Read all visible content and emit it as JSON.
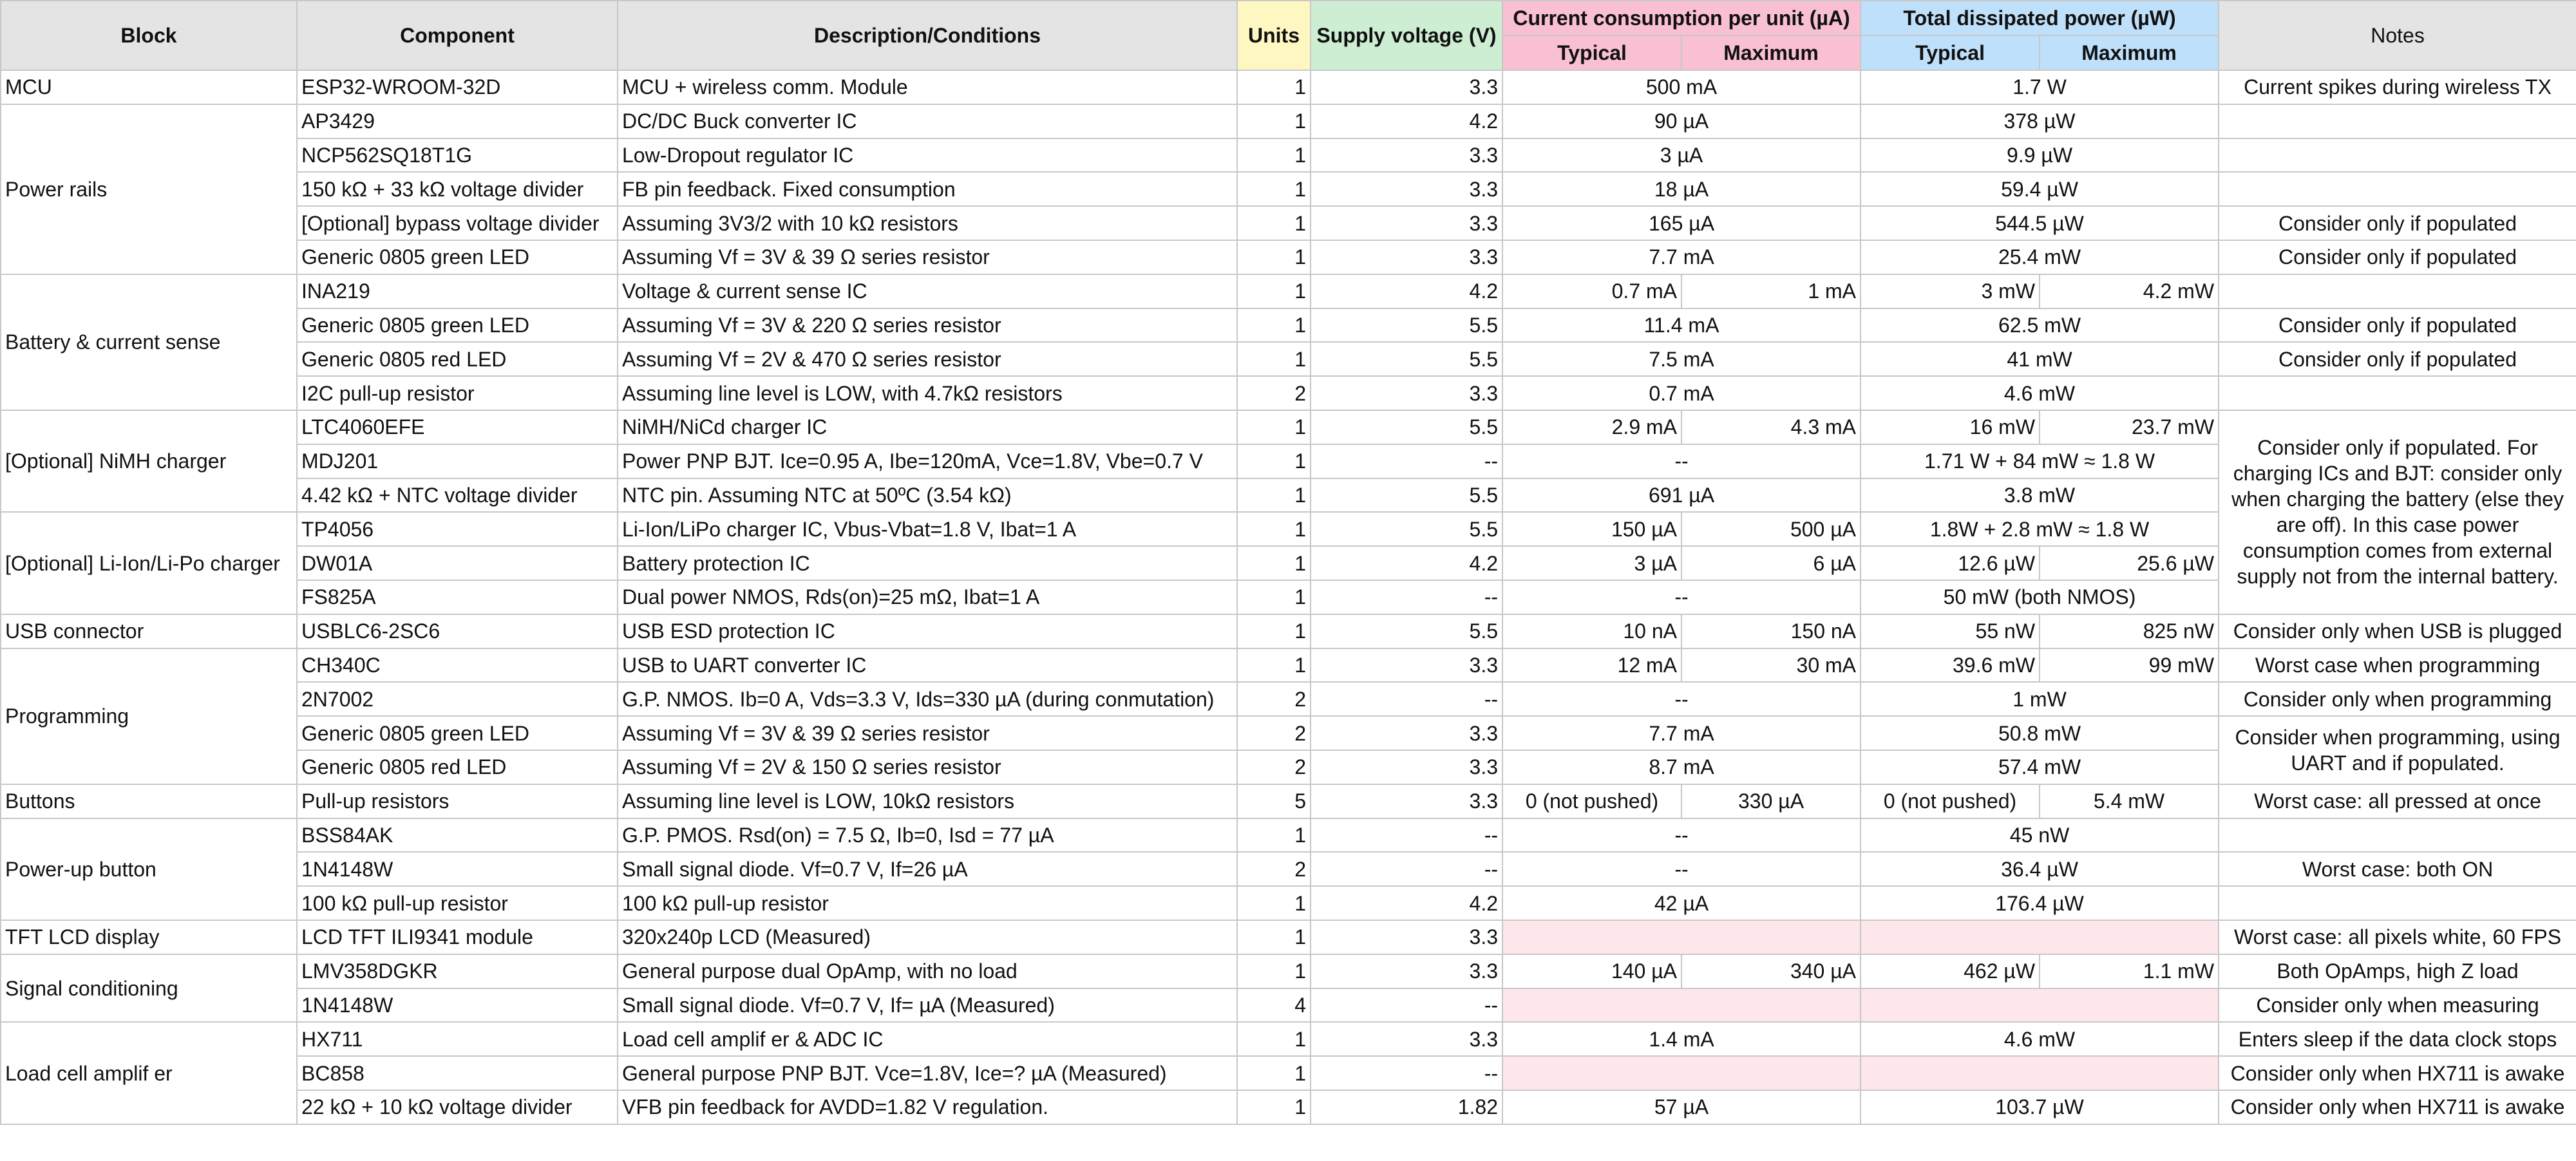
{
  "header": {
    "block": "Block",
    "component": "Component",
    "description": "Description/Conditions",
    "units": "Units",
    "supply": "Supply voltage (V)",
    "current": "Current consumption per unit (µA)",
    "power": "Total dissipated power (µW)",
    "notes": "Notes",
    "typical": "Typical",
    "maximum": "Maximum"
  },
  "blocks": {
    "mcu": "MCU",
    "power_rails": "Power rails",
    "battery": "Battery & current sense",
    "nimh": "[Optional] NiMH charger",
    "liion": "[Optional] Li-Ion/Li-Po charger",
    "usb": "USB connector",
    "programming": "Programming",
    "buttons": "Buttons",
    "powerup": "Power-up button",
    "tft": "TFT LCD display",
    "signal": "Signal conditioning",
    "loadcell": "Load cell amplif er"
  },
  "rows": [
    {
      "component": "ESP32-WROOM-32D",
      "description": "MCU + wireless comm. Module",
      "units": "1",
      "supply": "3.3",
      "current": "500 mA",
      "power": "1.7 W",
      "notes": "Current spikes during wireless TX"
    },
    {
      "component": "AP3429",
      "description": "DC/DC Buck converter IC",
      "units": "1",
      "supply": "4.2",
      "current": "90 µA",
      "power": "378 µW",
      "notes": ""
    },
    {
      "component": "NCP562SQ18T1G",
      "description": "Low-Dropout regulator IC",
      "units": "1",
      "supply": "3.3",
      "current": "3 µA",
      "power": "9.9 µW",
      "notes": ""
    },
    {
      "component": "150 kΩ + 33 kΩ voltage divider",
      "description": "FB pin feedback. Fixed consumption",
      "units": "1",
      "supply": "3.3",
      "current": "18 µA",
      "power": "59.4 µW",
      "notes": ""
    },
    {
      "component": "[Optional] bypass voltage divider",
      "description": "Assuming 3V3/2 with 10 kΩ resistors",
      "units": "1",
      "supply": "3.3",
      "current": "165 µA",
      "power": "544.5 µW",
      "notes": "Consider only if populated"
    },
    {
      "component": "Generic 0805 green LED",
      "description": "Assuming Vf = 3V & 39 Ω series resistor",
      "units": "1",
      "supply": "3.3",
      "current": "7.7 mA",
      "power": "25.4 mW",
      "notes": "Consider only if populated"
    },
    {
      "component": "INA219",
      "description": "Voltage & current sense IC",
      "units": "1",
      "supply": "4.2",
      "current_typ": "0.7 mA",
      "current_max": "1 mA",
      "power_typ": "3 mW",
      "power_max": "4.2 mW",
      "notes": ""
    },
    {
      "component": "Generic 0805 green LED",
      "description": "Assuming Vf = 3V & 220 Ω series resistor",
      "units": "1",
      "supply": "5.5",
      "current": "11.4 mA",
      "power": "62.5 mW",
      "notes": "Consider only if populated"
    },
    {
      "component": "Generic 0805 red LED",
      "description": "Assuming Vf = 2V & 470 Ω series resistor",
      "units": "1",
      "supply": "5.5",
      "current": "7.5 mA",
      "power": "41 mW",
      "notes": "Consider only if populated"
    },
    {
      "component": "I2C pull-up resistor",
      "description": "Assuming line level is LOW, with 4.7kΩ resistors",
      "units": "2",
      "supply": "3.3",
      "current": "0.7 mA",
      "power": "4.6 mW",
      "notes": ""
    },
    {
      "component": "LTC4060EFE",
      "description": "NiMH/NiCd charger IC",
      "units": "1",
      "supply": "5.5",
      "current_typ": "2.9 mA",
      "current_max": "4.3 mA",
      "power_typ": "16 mW",
      "power_max": "23.7 mW"
    },
    {
      "component": "MDJ201",
      "description": "Power PNP BJT. Ice=0.95 A, Ibe=120mA, Vce=1.8V, Vbe=0.7 V",
      "units": "1",
      "supply": "--",
      "current": "--",
      "power": "1.71 W + 84 mW ≈ 1.8 W"
    },
    {
      "component": "4.42 kΩ + NTC voltage divider",
      "description": "NTC pin. Assuming NTC at 50ºC (3.54 kΩ)",
      "units": "1",
      "supply": "5.5",
      "current": "691 µA",
      "power": "3.8 mW"
    },
    {
      "component": "TP4056",
      "description": "Li-Ion/LiPo charger IC, Vbus-Vbat=1.8 V, Ibat=1 A",
      "units": "1",
      "supply": "5.5",
      "current_typ": "150 µA",
      "current_max": "500 µA",
      "power": "1.8W + 2.8 mW ≈ 1.8 W"
    },
    {
      "component": "DW01A",
      "description": "Battery protection IC",
      "units": "1",
      "supply": "4.2",
      "current_typ": "3 µA",
      "current_max": "6 µA",
      "power_typ": "12.6 µW",
      "power_max": "25.6 µW"
    },
    {
      "component": "FS825A",
      "description": "Dual power NMOS, Rds(on)=25 mΩ, Ibat=1 A",
      "units": "1",
      "supply": "--",
      "current": "--",
      "power": "50 mW (both NMOS)"
    },
    {
      "component": "USBLC6-2SC6",
      "description": "USB ESD protection IC",
      "units": "1",
      "supply": "5.5",
      "current_typ": "10 nA",
      "current_max": "150 nA",
      "power_typ": "55 nW",
      "power_max": "825 nW",
      "notes": "Consider only when USB is plugged"
    },
    {
      "component": "CH340C",
      "description": "USB to UART converter IC",
      "units": "1",
      "supply": "3.3",
      "current_typ": "12 mA",
      "current_max": "30 mA",
      "power_typ": "39.6 mW",
      "power_max": "99 mW",
      "notes": "Worst case when programming"
    },
    {
      "component": "2N7002",
      "description": "G.P. NMOS. Ib=0 A, Vds=3.3 V, Ids=330 µA (during conmutation)",
      "units": "2",
      "supply": "--",
      "current": "--",
      "power": "1 mW",
      "notes": "Consider only when programming"
    },
    {
      "component": "Generic 0805 green LED",
      "description": "Assuming Vf = 3V & 39 Ω series resistor",
      "units": "2",
      "supply": "3.3",
      "current": "7.7 mA",
      "power": "50.8 mW"
    },
    {
      "component": "Generic 0805 red LED",
      "description": "Assuming Vf = 2V & 150 Ω series resistor",
      "units": "2",
      "supply": "3.3",
      "current": "8.7 mA",
      "power": "57.4 mW"
    },
    {
      "component": "Pull-up resistors",
      "description": "Assuming line level is LOW, 10kΩ resistors",
      "units": "5",
      "supply": "3.3",
      "current_typ": "0 (not pushed)",
      "current_max": "330 µA",
      "power_typ": "0 (not pushed)",
      "power_max": "5.4 mW",
      "notes": "Worst case: all pressed at once"
    },
    {
      "component": "BSS84AK",
      "description": "G.P. PMOS. Rsd(on) = 7.5 Ω, Ib=0, Isd = 77 µA",
      "units": "1",
      "supply": "--",
      "current": "--",
      "power": "45 nW",
      "notes": ""
    },
    {
      "component": "1N4148W",
      "description": "Small signal diode. Vf=0.7 V, If=26 µA",
      "units": "2",
      "supply": "--",
      "current": "--",
      "power": "36.4 µW",
      "notes": "Worst case: both ON"
    },
    {
      "component": "100 kΩ pull-up resistor",
      "description": "100 kΩ pull-up resistor",
      "units": "1",
      "supply": "4.2",
      "current": "42 µA",
      "power": "176.4 µW",
      "notes": ""
    },
    {
      "component": "LCD TFT ILI9341 module",
      "description": "320x240p LCD (Measured)",
      "units": "1",
      "supply": "3.3",
      "notes": "Worst case: all pixels white, 60 FPS"
    },
    {
      "component": "LMV358DGKR",
      "description": "General purpose dual OpAmp, with no load",
      "units": "1",
      "supply": "3.3",
      "current_typ": "140 µA",
      "current_max": "340 µA",
      "power_typ": "462 µW",
      "power_max": "1.1 mW",
      "notes": "Both OpAmps, high Z load"
    },
    {
      "component": "1N4148W",
      "description": "Small signal diode. Vf=0.7 V, If= µA (Measured)",
      "units": "4",
      "supply": "--",
      "notes": "Consider only when measuring"
    },
    {
      "component": "HX711",
      "description": "Load cell amplif er & ADC IC",
      "units": "1",
      "supply": "3.3",
      "current": "1.4 mA",
      "power": "4.6 mW",
      "notes": "Enters sleep if the data clock stops"
    },
    {
      "component": "BC858",
      "description": "General purpose PNP BJT. Vce=1.8V, Ice=? µA (Measured)",
      "units": "1",
      "supply": "--",
      "notes": "Consider only when HX711 is awake"
    },
    {
      "component": "22 kΩ + 10 kΩ voltage divider",
      "description": "VFB pin feedback for AVDD=1.82 V regulation.",
      "units": "1",
      "supply": "1.82",
      "current": "57 µA",
      "power": "103.7 µW",
      "notes": "Consider only when HX711 is awake"
    }
  ],
  "merged_notes": {
    "chargers": "Consider only if populated. For charging ICs and BJT: consider only when charging the battery (else they are off). In this case power consumption comes from external supply not from the internal battery.",
    "programming_leds": "Consider when programming, using UART and if populated."
  }
}
